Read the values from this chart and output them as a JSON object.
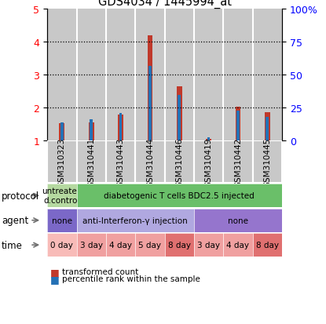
{
  "title": "GDS4034 / 1445994_at",
  "samples": [
    "GSM310323",
    "GSM310441",
    "GSM310443",
    "GSM310444",
    "GSM310446",
    "GSM310419",
    "GSM310442",
    "GSM310445"
  ],
  "red_values": [
    1.52,
    1.55,
    1.8,
    4.2,
    2.65,
    1.05,
    2.02,
    1.85
  ],
  "blue_values": [
    1.55,
    1.65,
    1.83,
    3.28,
    2.38,
    1.1,
    1.92,
    1.72
  ],
  "ylim": [
    1,
    5
  ],
  "yticks_left": [
    1,
    2,
    3,
    4,
    5
  ],
  "ytick_labels_right": [
    "0",
    "25",
    "50",
    "75",
    "100%"
  ],
  "bar_color_red": "#c0392b",
  "bar_color_blue": "#2471b5",
  "dotted_yticks": [
    2,
    3,
    4
  ],
  "protocol_items": [
    [
      "untreated\nd.control",
      "#b5d9a0",
      0,
      1
    ],
    [
      "diabetogenic T cells BDC2.5 injected",
      "#6abf69",
      1,
      7
    ]
  ],
  "agent_items": [
    [
      "none",
      "#7b68c8",
      0,
      1
    ],
    [
      "anti-Interferon-γ injection",
      "#b0a8e0",
      1,
      4
    ],
    [
      "none",
      "#9575cd",
      5,
      3
    ]
  ],
  "time_texts": [
    "0 day",
    "3 day",
    "4 day",
    "5 day",
    "8 day",
    "3 day",
    "4 day",
    "8 day"
  ],
  "time_colors": [
    "#f8bbb8",
    "#f0a0a0",
    "#f0a0a0",
    "#f0a0a0",
    "#e07070",
    "#f0a0a0",
    "#f0a0a0",
    "#e07070"
  ],
  "col_bg_color": "#c8c8c8",
  "tick_fontsize": 9,
  "sample_fontsize": 7.5
}
